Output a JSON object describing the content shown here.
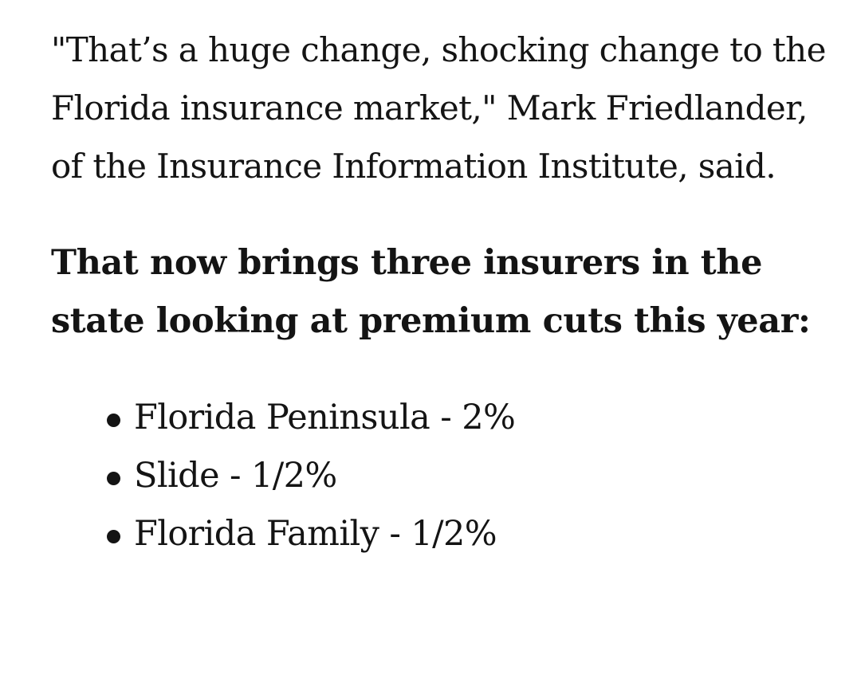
{
  "article": {
    "quote_paragraph": "\"That’s a huge change, shocking change to the Florida insurance market,\" Mark Friedlander, of the Insurance Information Institute, said.",
    "lead_paragraph": "That now brings three insurers in the state looking at premium cuts this year:",
    "premium_cuts": [
      {
        "text": "Florida Peninsula - 2%"
      },
      {
        "text": "Slide - 1/2%"
      },
      {
        "text": "Florida Family - 1/2%"
      }
    ]
  }
}
